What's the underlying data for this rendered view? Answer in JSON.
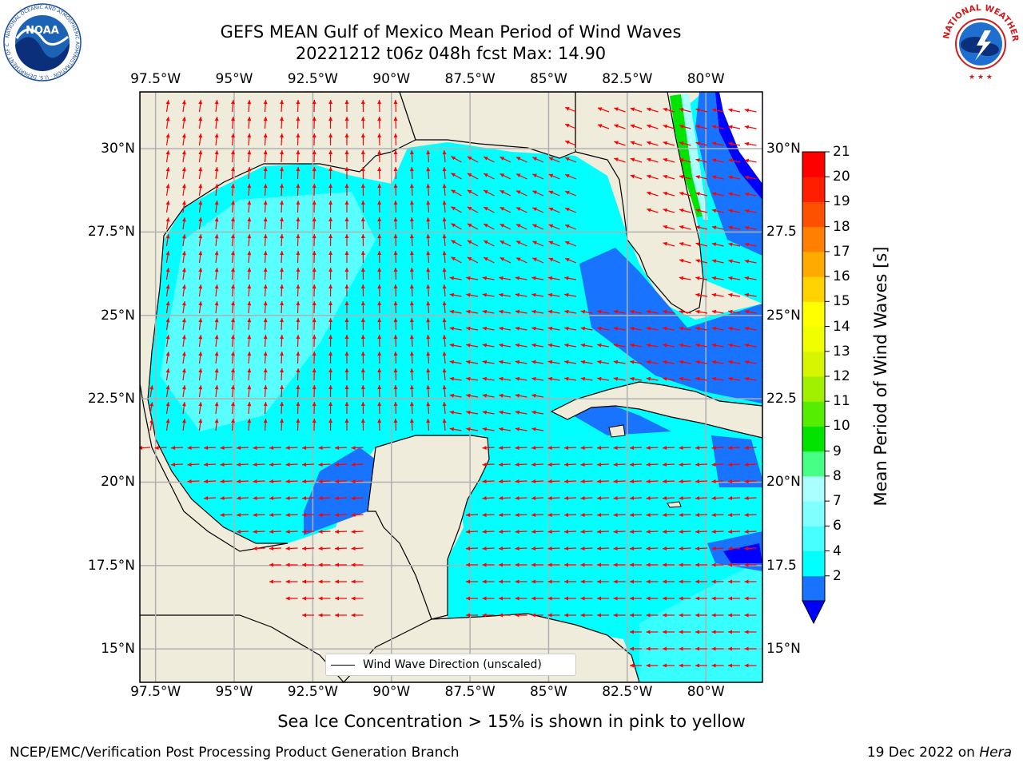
{
  "title_line1": "GEFS MEAN Gulf of Mexico Mean Period of Wind Waves",
  "title_line2": "20221212 t06z 048h fcst   Max: 14.90",
  "map": {
    "lon_ticks": [
      "97.5°W",
      "95°W",
      "92.5°W",
      "90°W",
      "87.5°W",
      "85°W",
      "82.5°W",
      "80°W"
    ],
    "lon_values": [
      -97.5,
      -95,
      -92.5,
      -90,
      -87.5,
      -85,
      -82.5,
      -80
    ],
    "lat_ticks_left": [
      "30°N",
      "27.5°N",
      "25°N",
      "22.5°N",
      "20°N",
      "17.5°N",
      "15°N"
    ],
    "lat_ticks_right": [
      "30°N",
      "27.5",
      "25°N",
      "22.5",
      "20°N",
      "17.5",
      "15°N"
    ],
    "lat_values": [
      30,
      27.5,
      25,
      22.5,
      20,
      17.5,
      15
    ],
    "lon_range": [
      -98,
      -78.2
    ],
    "lat_range": [
      14.0,
      31.7
    ],
    "land_color": "#efecdc",
    "ocean_main_color": "#00ffff",
    "arrow_color": "#ff0000"
  },
  "colorbar": {
    "label": "Mean Period of Wind Waves [s]",
    "ticks": [
      "21",
      "20",
      "19",
      "18",
      "17",
      "16",
      "15",
      "14",
      "13",
      "12",
      "11",
      "10",
      "9",
      "8",
      "7",
      "6",
      "4",
      "2"
    ],
    "colors_bottom_to_top": [
      "#1874ff",
      "#00ffff",
      "#46ffff",
      "#7fffff",
      "#aaffff",
      "#46ff84",
      "#00e400",
      "#56ee00",
      "#a0f000",
      "#d6f500",
      "#f0ff00",
      "#ffff00",
      "#ffd200",
      "#ffaa00",
      "#ff8000",
      "#ff5000",
      "#ff1e00",
      "#ff0000"
    ],
    "under_color": "#0000ff"
  },
  "legend": {
    "label": "Wind Wave Direction (unscaled)"
  },
  "footer": {
    "subtitle": "Sea Ice Concentration > 15% is shown in pink to yellow",
    "left": "NCEP/EMC/Verification Post Processing Product Generation Branch",
    "right_prefix": "19 Dec 2022 on ",
    "right_host": "Hera"
  },
  "logos": {
    "left": {
      "text": "NOAA",
      "ring_text": "NATIONAL OCEANIC AND ATMOSPHERIC ADMINISTRATION · U.S. DEPARTMENT OF COMMERCE"
    },
    "right": {
      "ring_text": "NATIONAL WEATHER SERVICE"
    }
  }
}
